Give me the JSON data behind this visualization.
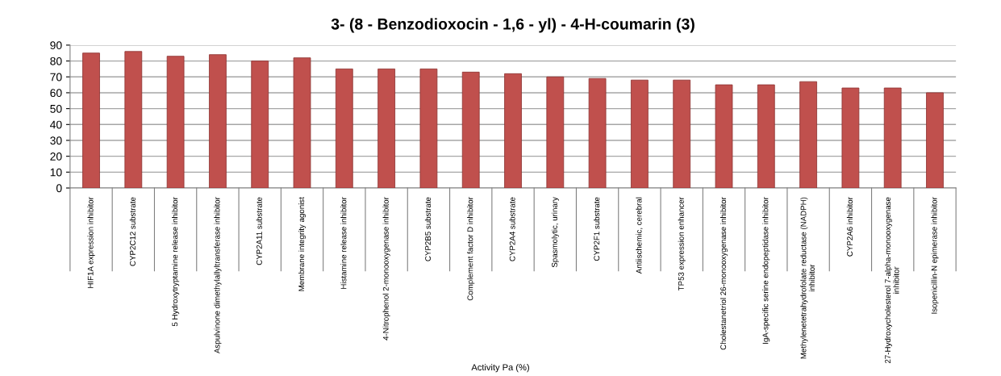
{
  "chart_data": {
    "type": "bar",
    "title": "3- (8 - Benzodioxocin - 1,6 - yl) - 4-H-coumarin (3)",
    "xlabel": "Activity Pa (%)",
    "categories": [
      "HIF1A expression inhibitor",
      "CYP2C12 substrate",
      "5 Hydroxytryptamine release inhibitor",
      "Aspulvinone dimethylallyltransferase inhibitor",
      "CYP2A11 substrate",
      "Membrane integrity agonist",
      "Histamine release inhibitor",
      "4-Nitrophenol 2-monooxygenase inhibitor",
      "CYP2B5 substrate",
      "Complement factor D inhibitor",
      "CYP2A4 substrate",
      "Spasmolytic, urinary",
      "CYP2F1 substrate",
      "Antiischemic, cerebral",
      "TP53 expression enhancer",
      "Cholestanetriol 26-monooxygenase inhibitor",
      "IgA-specific serine endopeptidase inhibitor",
      "Methylenetetrahydrofolate reductase (NADPH) inhibitor",
      "CYP2A6 inhibitor",
      "27-Hydroxycholesterol 7-alpha-monooxygenase inhibitor",
      "Isopenicillin-N epimerase inhibitor"
    ],
    "values": [
      85,
      86,
      83,
      84,
      80,
      82,
      75,
      75,
      75,
      73,
      72,
      70,
      69,
      68,
      68,
      65,
      65,
      67,
      63,
      63,
      60
    ],
    "color": "#c0504d",
    "ylim": [
      0,
      90
    ],
    "yticks": [
      0,
      10,
      20,
      30,
      40,
      50,
      60,
      70,
      80,
      90
    ],
    "grid": "y",
    "legend": false
  }
}
